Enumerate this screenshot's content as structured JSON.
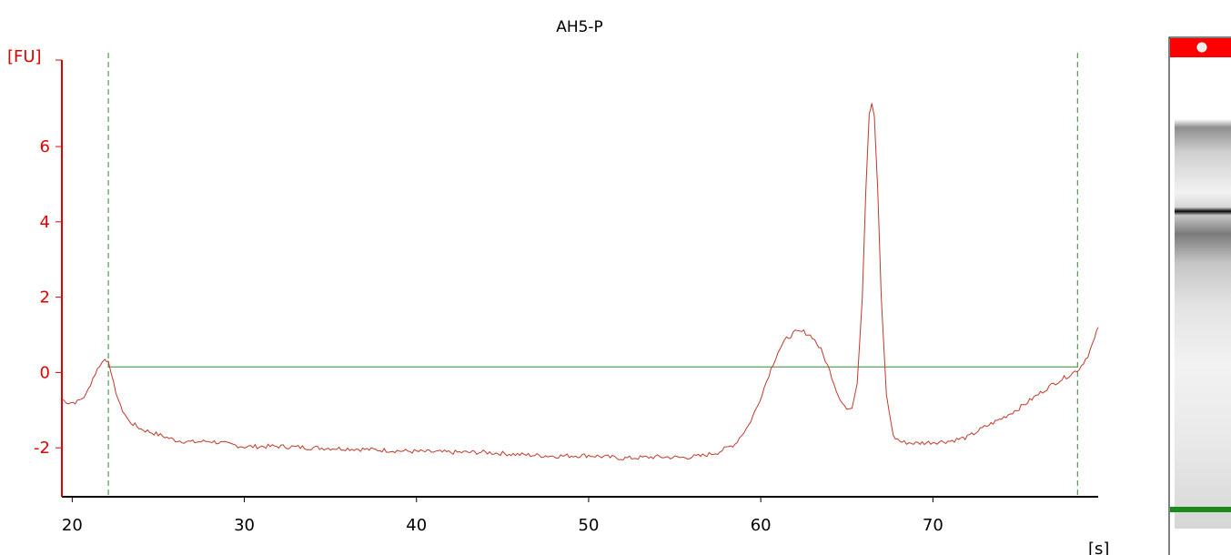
{
  "title": "AH5-P",
  "colors": {
    "y_axis": "#e00000",
    "trace": "#c0392b",
    "marker": "#2e8b2e",
    "baseline": "#2e8b2e",
    "x_axis": "#000000",
    "gel_top_band": "#ff0000",
    "gel_bottom_band": "#1a8a1a"
  },
  "chart_data": {
    "type": "line",
    "title": "AH5-P",
    "xlabel": "[s]",
    "ylabel": "[FU]",
    "xlim": [
      19.4,
      79.6
    ],
    "ylim": [
      -3.3,
      8.2
    ],
    "x_ticks": [
      20,
      30,
      40,
      50,
      60,
      70
    ],
    "y_ticks": [
      -2,
      0,
      2,
      4,
      6
    ],
    "marker_lines_x": [
      22.1,
      78.4
    ],
    "baseline": {
      "x": [
        22.1,
        78.4
      ],
      "y": 0.15
    },
    "grid": false,
    "series": [
      {
        "points": [
          [
            19.4,
            -0.72
          ],
          [
            19.8,
            -0.8
          ],
          [
            20.3,
            -0.78
          ],
          [
            20.8,
            -0.6
          ],
          [
            21.2,
            -0.15
          ],
          [
            21.6,
            0.2
          ],
          [
            21.9,
            0.35
          ],
          [
            22.1,
            0.3
          ],
          [
            22.4,
            -0.3
          ],
          [
            22.8,
            -0.9
          ],
          [
            23.3,
            -1.3
          ],
          [
            24.0,
            -1.5
          ],
          [
            25.0,
            -1.65
          ],
          [
            26.0,
            -1.8
          ],
          [
            27.0,
            -1.85
          ],
          [
            28.0,
            -1.82
          ],
          [
            29.0,
            -1.9
          ],
          [
            30.0,
            -1.97
          ],
          [
            32.0,
            -1.96
          ],
          [
            34.0,
            -2.0
          ],
          [
            36.0,
            -2.02
          ],
          [
            38.0,
            -2.06
          ],
          [
            40.0,
            -2.1
          ],
          [
            42.0,
            -2.12
          ],
          [
            44.0,
            -2.12
          ],
          [
            46.0,
            -2.18
          ],
          [
            48.0,
            -2.22
          ],
          [
            50.0,
            -2.2
          ],
          [
            52.0,
            -2.28
          ],
          [
            54.0,
            -2.24
          ],
          [
            55.5,
            -2.26
          ],
          [
            56.5,
            -2.22
          ],
          [
            57.5,
            -2.12
          ],
          [
            58.5,
            -1.9
          ],
          [
            59.3,
            -1.4
          ],
          [
            59.8,
            -0.9
          ],
          [
            60.2,
            -0.4
          ],
          [
            60.6,
            0.1
          ],
          [
            61.0,
            0.55
          ],
          [
            61.5,
            0.9
          ],
          [
            62.0,
            1.07
          ],
          [
            62.5,
            1.08
          ],
          [
            63.0,
            0.95
          ],
          [
            63.5,
            0.6
          ],
          [
            64.0,
            0.05
          ],
          [
            64.5,
            -0.6
          ],
          [
            65.0,
            -0.98
          ],
          [
            65.3,
            -0.95
          ],
          [
            65.6,
            -0.3
          ],
          [
            65.9,
            2.0
          ],
          [
            66.1,
            4.8
          ],
          [
            66.3,
            6.9
          ],
          [
            66.45,
            7.15
          ],
          [
            66.6,
            6.8
          ],
          [
            66.8,
            4.8
          ],
          [
            67.0,
            2.0
          ],
          [
            67.3,
            -0.6
          ],
          [
            67.7,
            -1.7
          ],
          [
            68.2,
            -1.85
          ],
          [
            69.0,
            -1.88
          ],
          [
            70.0,
            -1.85
          ],
          [
            71.0,
            -1.82
          ],
          [
            72.0,
            -1.72
          ],
          [
            73.0,
            -1.45
          ],
          [
            74.0,
            -1.22
          ],
          [
            75.0,
            -0.95
          ],
          [
            76.0,
            -0.62
          ],
          [
            77.0,
            -0.3
          ],
          [
            78.0,
            -0.05
          ],
          [
            78.5,
            0.1
          ],
          [
            79.0,
            0.45
          ],
          [
            79.4,
            0.9
          ],
          [
            79.6,
            1.2
          ]
        ]
      }
    ],
    "legend": "none"
  }
}
